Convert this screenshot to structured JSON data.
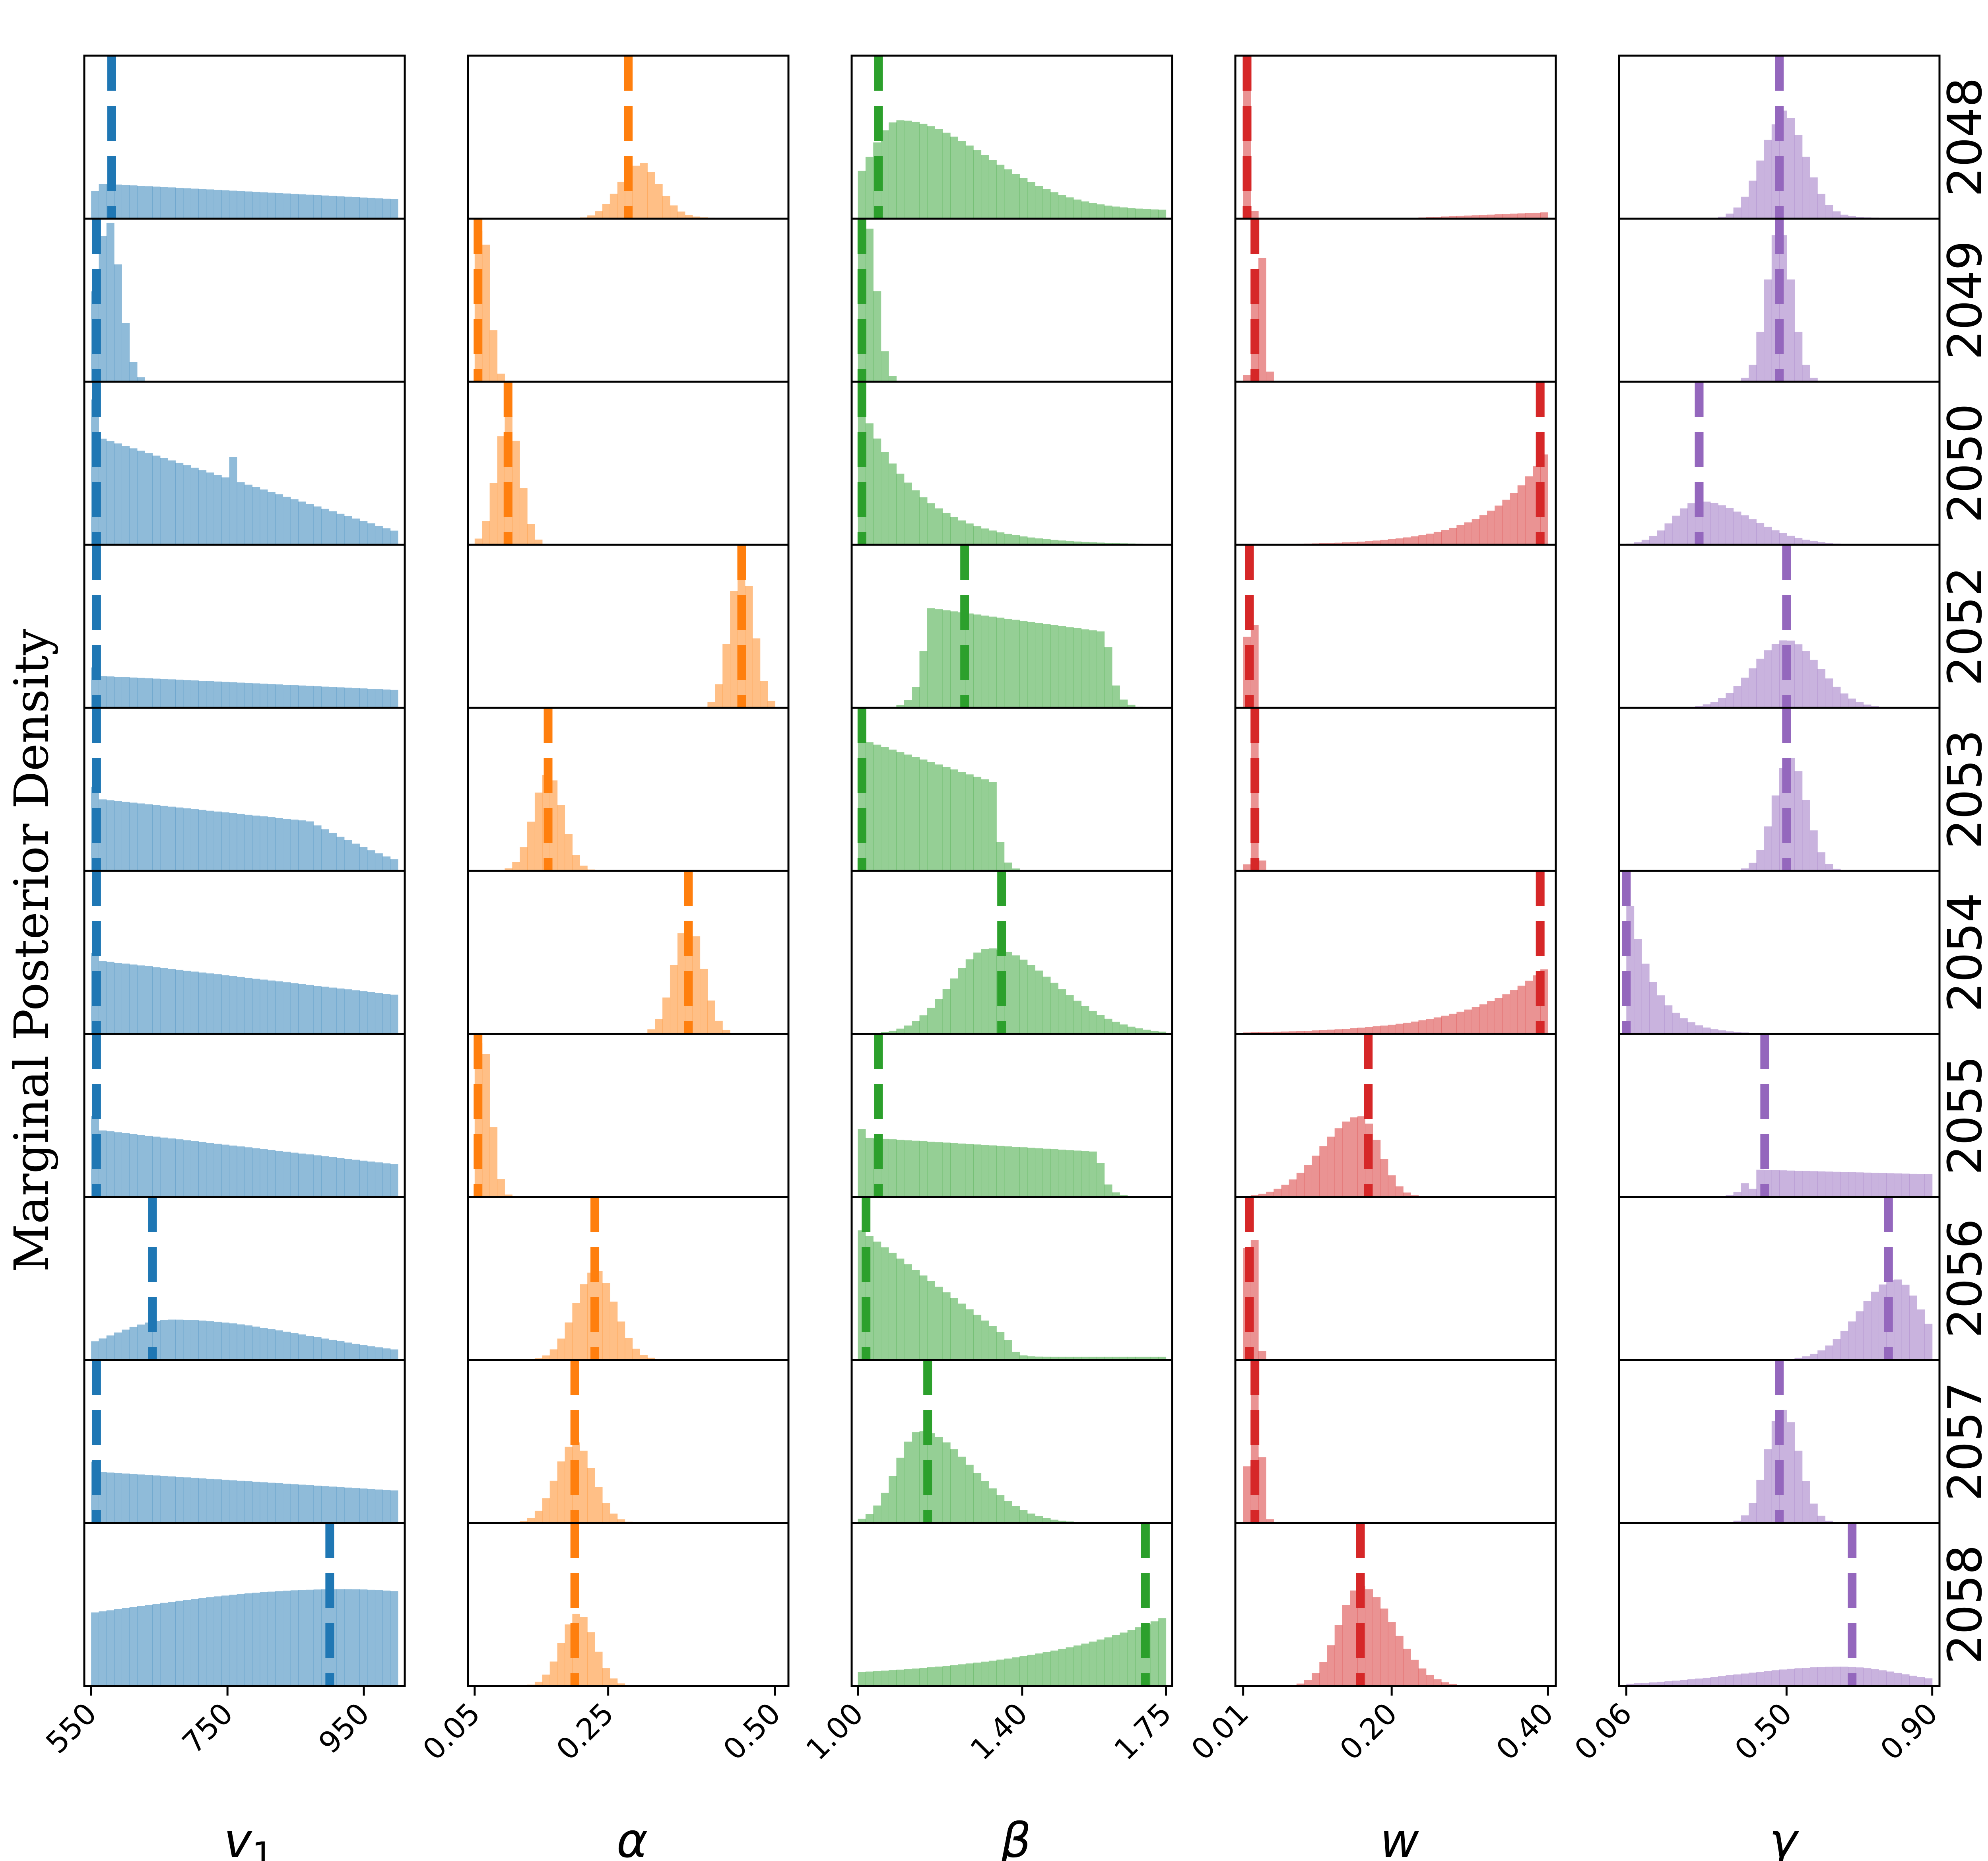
{
  "chart_data": {
    "type": "histogram_grid",
    "ylabel": "Marginal Posterior Density",
    "rows": [
      "2048",
      "2049",
      "2050",
      "2052",
      "2053",
      "2054",
      "2055",
      "2056",
      "2057",
      "2058"
    ],
    "columns": [
      {
        "name": "v1",
        "xlabel": "v",
        "xlabel_sub": "1",
        "color": "#1f77b4",
        "xlim": [
          540,
          1010
        ],
        "ticks": [
          {
            "value": 550,
            "label": "550"
          },
          {
            "value": 750,
            "label": "750"
          },
          {
            "value": 950,
            "label": "950"
          }
        ],
        "hist_range": [
          550,
          1000
        ]
      },
      {
        "name": "alpha",
        "xlabel": "α",
        "color": "#ff7f0e",
        "xlim": [
          0.04,
          0.52
        ],
        "ticks": [
          {
            "value": 0.05,
            "label": "0.05"
          },
          {
            "value": 0.25,
            "label": "0.25"
          },
          {
            "value": 0.5,
            "label": "0.50"
          }
        ],
        "hist_range": [
          0.05,
          0.5
        ]
      },
      {
        "name": "beta",
        "xlabel": "β",
        "color": "#2ca02c",
        "xlim": [
          0.985,
          1.765
        ],
        "ticks": [
          {
            "value": 1.0,
            "label": "1.00"
          },
          {
            "value": 1.4,
            "label": "1.40"
          },
          {
            "value": 1.75,
            "label": "1.75"
          }
        ],
        "hist_range": [
          1.0,
          1.75
        ]
      },
      {
        "name": "w",
        "xlabel": "w",
        "color": "#d62728",
        "xlim": [
          0.0,
          0.41
        ],
        "ticks": [
          {
            "value": 0.01,
            "label": "0.01"
          },
          {
            "value": 0.2,
            "label": "0.20"
          },
          {
            "value": 0.4,
            "label": "0.40"
          }
        ],
        "hist_range": [
          0.01,
          0.4
        ]
      },
      {
        "name": "gamma",
        "xlabel": "γ",
        "color": "#9467bd",
        "xlim": [
          0.04,
          0.92
        ],
        "ticks": [
          {
            "value": 0.06,
            "label": "0.06"
          },
          {
            "value": 0.5,
            "label": "0.50"
          },
          {
            "value": 0.9,
            "label": "0.90"
          }
        ],
        "hist_range": [
          0.06,
          0.9
        ]
      }
    ],
    "panels": [
      [
        {
          "median": 580,
          "hist": {
            "type": "decay",
            "start": 0.22,
            "end": 0.12,
            "first": 0.17
          }
        },
        {
          "median": 0.28,
          "hist": {
            "type": "peak",
            "center": 0.295,
            "width": 0.03,
            "amp": 0.33,
            "tail": 0.03
          }
        },
        {
          "median": 1.05,
          "hist": {
            "type": "skew",
            "peak": 1.1,
            "left": 0.1,
            "right": 0.3,
            "amp": 0.56,
            "floor": 0.05
          }
        },
        {
          "median": 0.015,
          "hist": {
            "type": "w2048"
          }
        },
        {
          "median": 0.48,
          "hist": {
            "type": "peak",
            "center": 0.49,
            "width": 0.06,
            "amp": 0.62,
            "tail": 0.05
          }
        }
      ],
      [
        {
          "median": 558,
          "hist": {
            "type": "spike",
            "center": 575,
            "width": 18,
            "amp": 1.0
          }
        },
        {
          "median": 0.055,
          "hist": {
            "type": "spike",
            "center": 0.06,
            "width": 0.012,
            "amp": 1.0
          }
        },
        {
          "median": 1.01,
          "hist": {
            "type": "spike",
            "center": 1.02,
            "width": 0.025,
            "amp": 1.0
          }
        },
        {
          "median": 0.025,
          "hist": {
            "type": "spike",
            "center": 0.03,
            "width": 0.006,
            "amp": 1.0
          }
        },
        {
          "median": 0.48,
          "hist": {
            "type": "peak",
            "center": 0.48,
            "width": 0.035,
            "amp": 0.95,
            "tail": 0.0
          }
        }
      ],
      [
        {
          "median": 558,
          "hist": {
            "type": "decay",
            "start": 0.68,
            "end": 0.08,
            "first": 0.9,
            "bump": 760
          }
        },
        {
          "median": 0.1,
          "hist": {
            "type": "peak",
            "center": 0.1,
            "width": 0.018,
            "amp": 0.8,
            "tail": 0.0
          }
        },
        {
          "median": 1.01,
          "hist": {
            "type": "exp",
            "scale": 0.14,
            "amp": 0.92
          }
        },
        {
          "median": 0.39,
          "hist": {
            "type": "rise",
            "scale": 0.07,
            "amp": 0.6
          }
        },
        {
          "median": 0.26,
          "hist": {
            "type": "skew",
            "peak": 0.26,
            "left": 0.1,
            "right": 0.2,
            "amp": 0.27,
            "floor": 0.0
          }
        }
      ],
      [
        {
          "median": 558,
          "hist": {
            "type": "decay",
            "start": 0.2,
            "end": 0.11,
            "first": 0.25
          }
        },
        {
          "median": 0.45,
          "hist": {
            "type": "peak",
            "center": 0.45,
            "width": 0.018,
            "amp": 0.9,
            "tail": 0.0
          }
        },
        {
          "median": 1.26,
          "hist": {
            "type": "plateau",
            "lo": 1.17,
            "hi": 1.6,
            "start": 0.62,
            "end": 0.47
          }
        },
        {
          "median": 0.018,
          "hist": {
            "type": "spike",
            "center": 0.02,
            "width": 0.004,
            "amp": 1.0
          }
        },
        {
          "median": 0.5,
          "hist": {
            "type": "peak",
            "center": 0.5,
            "width": 0.09,
            "amp": 0.42,
            "tail": 0.0
          }
        }
      ],
      [
        {
          "median": 558,
          "hist": {
            "type": "decay",
            "start": 0.45,
            "end": 0.25,
            "first": 0.52,
            "drop": 870
          }
        },
        {
          "median": 0.16,
          "hist": {
            "type": "peak",
            "center": 0.16,
            "width": 0.022,
            "amp": 0.6,
            "tail": 0.0
          }
        },
        {
          "median": 1.01,
          "hist": {
            "type": "ramp",
            "hi": 1.33,
            "start": 0.82,
            "end": 0.55
          }
        },
        {
          "median": 0.025,
          "hist": {
            "type": "spike",
            "center": 0.025,
            "width": 0.004,
            "amp": 1.0
          }
        },
        {
          "median": 0.5,
          "hist": {
            "type": "peak",
            "center": 0.51,
            "width": 0.045,
            "amp": 0.7,
            "tail": 0.0
          }
        }
      ],
      [
        {
          "median": 558,
          "hist": {
            "type": "decay",
            "start": 0.46,
            "end": 0.24,
            "first": 0.5
          }
        },
        {
          "median": 0.37,
          "hist": {
            "type": "peak",
            "center": 0.37,
            "width": 0.022,
            "amp": 0.7,
            "tail": 0.0
          }
        },
        {
          "median": 1.35,
          "hist": {
            "type": "skew",
            "peak": 1.32,
            "left": 0.13,
            "right": 0.22,
            "amp": 0.53,
            "floor": 0.0
          }
        },
        {
          "median": 0.39,
          "hist": {
            "type": "rise",
            "scale": 0.1,
            "amp": 0.42
          }
        },
        {
          "median": 0.06,
          "hist": {
            "type": "exp",
            "scale": 0.07,
            "amp": 0.92,
            "x0": 0.06
          }
        }
      ],
      [
        {
          "median": 558,
          "hist": {
            "type": "decay",
            "start": 0.42,
            "end": 0.2,
            "first": 0.5
          }
        },
        {
          "median": 0.055,
          "hist": {
            "type": "spike",
            "center": 0.06,
            "width": 0.014,
            "amp": 1.0
          }
        },
        {
          "median": 1.05,
          "hist": {
            "type": "plateau",
            "lo": 1.0,
            "hi": 1.58,
            "start": 0.37,
            "end": 0.28,
            "first": 0.42
          }
        },
        {
          "median": 0.17,
          "hist": {
            "type": "skew",
            "peak": 0.16,
            "left": 0.07,
            "right": 0.035,
            "amp": 0.5,
            "floor": 0.0
          }
        },
        {
          "median": 0.44,
          "hist": {
            "type": "plateau",
            "lo": 0.4,
            "hi": 0.9,
            "start": 0.17,
            "end": 0.14,
            "first": 0.05
          }
        }
      ],
      [
        {
          "median": 640,
          "hist": {
            "type": "hump",
            "center": 670,
            "left": 130,
            "right": 280,
            "amp": 0.25
          }
        },
        {
          "median": 0.23,
          "hist": {
            "type": "peak",
            "center": 0.23,
            "width": 0.03,
            "amp": 0.55,
            "tail": 0.01
          }
        },
        {
          "median": 1.02,
          "hist": {
            "type": "ramp",
            "hi": 1.36,
            "start": 0.82,
            "end": 0.15,
            "tail": 0.02
          }
        },
        {
          "median": 0.018,
          "hist": {
            "type": "spike",
            "center": 0.02,
            "width": 0.006,
            "amp": 1.0
          }
        },
        {
          "median": 0.78,
          "hist": {
            "type": "skew",
            "peak": 0.8,
            "left": 0.14,
            "right": 0.1,
            "amp": 0.5,
            "floor": 0.0
          }
        }
      ],
      [
        {
          "median": 558,
          "hist": {
            "type": "decay",
            "start": 0.32,
            "end": 0.2,
            "first": 0.38
          }
        },
        {
          "median": 0.2,
          "hist": {
            "type": "peak",
            "center": 0.2,
            "width": 0.028,
            "amp": 0.5,
            "tail": 0.0
          }
        },
        {
          "median": 1.17,
          "hist": {
            "type": "skew",
            "peak": 1.15,
            "left": 0.08,
            "right": 0.18,
            "amp": 0.57,
            "floor": 0.0
          }
        },
        {
          "median": 0.025,
          "hist": {
            "type": "spike",
            "center": 0.025,
            "width": 0.007,
            "amp": 1.0
          }
        },
        {
          "median": 0.48,
          "hist": {
            "type": "peak",
            "center": 0.49,
            "width": 0.045,
            "amp": 0.7,
            "tail": 0.0
          }
        }
      ],
      [
        {
          "median": 900,
          "hist": {
            "type": "hump",
            "center": 920,
            "left": 500,
            "right": 400,
            "amp": 0.35,
            "floor": 0.25
          }
        },
        {
          "median": 0.2,
          "hist": {
            "type": "peak",
            "center": 0.205,
            "width": 0.025,
            "amp": 0.45,
            "tail": 0.0
          }
        },
        {
          "median": 1.7,
          "hist": {
            "type": "rise",
            "scale": 0.35,
            "amp": 0.38,
            "floor": 0.04,
            "x0": 1.0,
            "x1": 1.74
          }
        },
        {
          "median": 0.16,
          "hist": {
            "type": "skew",
            "peak": 0.16,
            "left": 0.04,
            "right": 0.06,
            "amp": 0.62,
            "floor": 0.0
          }
        },
        {
          "median": 0.68,
          "hist": {
            "type": "hump",
            "center": 0.65,
            "left": 0.4,
            "right": 0.25,
            "amp": 0.12,
            "floor": 0.0
          }
        }
      ]
    ]
  }
}
